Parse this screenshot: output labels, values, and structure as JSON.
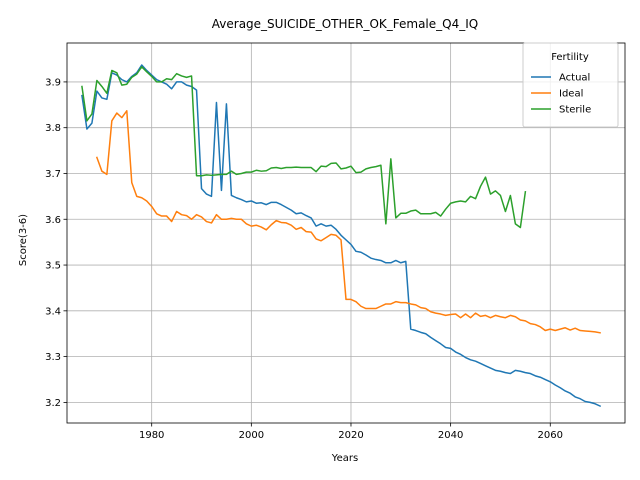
{
  "chart_data": {
    "type": "line",
    "title": "Average_SUICIDE_OTHER_OK_Female_Q4_IQ",
    "xlabel": "Years",
    "ylabel": "Score(3-6)",
    "xlim": [
      1963,
      2075
    ],
    "ylim": [
      3.155,
      3.985
    ],
    "xticks": [
      1980,
      2000,
      2020,
      2040,
      2060
    ],
    "yticks": [
      3.2,
      3.3,
      3.4,
      3.5,
      3.6,
      3.7,
      3.8,
      3.9
    ],
    "grid": true,
    "legend": {
      "title": "Fertility",
      "placement": "top-right"
    },
    "series": [
      {
        "name": "Actual",
        "color": "#1f77b4",
        "points": [
          [
            1966,
            3.87
          ],
          [
            1967,
            3.797
          ],
          [
            1968,
            3.81
          ],
          [
            1969,
            3.88
          ],
          [
            1970,
            3.865
          ],
          [
            1971,
            3.862
          ],
          [
            1972,
            3.92
          ],
          [
            1973,
            3.915
          ],
          [
            1974,
            3.905
          ],
          [
            1975,
            3.9
          ],
          [
            1976,
            3.912
          ],
          [
            1977,
            3.92
          ],
          [
            1978,
            3.937
          ],
          [
            1979,
            3.925
          ],
          [
            1980,
            3.915
          ],
          [
            1981,
            3.905
          ],
          [
            1982,
            3.9
          ],
          [
            1983,
            3.895
          ],
          [
            1984,
            3.885
          ],
          [
            1985,
            3.9
          ],
          [
            1986,
            3.9
          ],
          [
            1987,
            3.893
          ],
          [
            1988,
            3.89
          ],
          [
            1989,
            3.882
          ],
          [
            1990,
            3.667
          ],
          [
            1991,
            3.655
          ],
          [
            1992,
            3.65
          ],
          [
            1993,
            3.855
          ],
          [
            1994,
            3.663
          ],
          [
            1995,
            3.852
          ],
          [
            1996,
            3.652
          ],
          [
            1997,
            3.647
          ],
          [
            1998,
            3.643
          ],
          [
            1999,
            3.638
          ],
          [
            2000,
            3.64
          ],
          [
            2001,
            3.635
          ],
          [
            2002,
            3.636
          ],
          [
            2003,
            3.632
          ],
          [
            2004,
            3.637
          ],
          [
            2005,
            3.637
          ],
          [
            2006,
            3.632
          ],
          [
            2007,
            3.626
          ],
          [
            2008,
            3.62
          ],
          [
            2009,
            3.612
          ],
          [
            2010,
            3.614
          ],
          [
            2011,
            3.608
          ],
          [
            2012,
            3.603
          ],
          [
            2013,
            3.585
          ],
          [
            2014,
            3.59
          ],
          [
            2015,
            3.585
          ],
          [
            2016,
            3.587
          ],
          [
            2017,
            3.578
          ],
          [
            2018,
            3.565
          ],
          [
            2019,
            3.555
          ],
          [
            2020,
            3.545
          ],
          [
            2021,
            3.53
          ],
          [
            2022,
            3.528
          ],
          [
            2023,
            3.522
          ],
          [
            2024,
            3.515
          ],
          [
            2025,
            3.512
          ],
          [
            2026,
            3.51
          ],
          [
            2027,
            3.505
          ],
          [
            2028,
            3.505
          ],
          [
            2029,
            3.51
          ],
          [
            2030,
            3.505
          ],
          [
            2031,
            3.508
          ],
          [
            2032,
            3.36
          ],
          [
            2033,
            3.357
          ],
          [
            2034,
            3.353
          ],
          [
            2035,
            3.35
          ],
          [
            2036,
            3.342
          ],
          [
            2037,
            3.335
          ],
          [
            2038,
            3.328
          ],
          [
            2039,
            3.32
          ],
          [
            2040,
            3.318
          ],
          [
            2041,
            3.31
          ],
          [
            2042,
            3.305
          ],
          [
            2043,
            3.298
          ],
          [
            2044,
            3.293
          ],
          [
            2045,
            3.29
          ],
          [
            2046,
            3.285
          ],
          [
            2047,
            3.28
          ],
          [
            2048,
            3.275
          ],
          [
            2049,
            3.27
          ],
          [
            2050,
            3.268
          ],
          [
            2051,
            3.265
          ],
          [
            2052,
            3.263
          ],
          [
            2053,
            3.27
          ],
          [
            2054,
            3.268
          ],
          [
            2055,
            3.265
          ],
          [
            2056,
            3.263
          ],
          [
            2057,
            3.258
          ],
          [
            2058,
            3.255
          ],
          [
            2059,
            3.25
          ],
          [
            2060,
            3.245
          ],
          [
            2061,
            3.238
          ],
          [
            2062,
            3.232
          ],
          [
            2063,
            3.225
          ],
          [
            2064,
            3.22
          ],
          [
            2065,
            3.212
          ],
          [
            2066,
            3.208
          ],
          [
            2067,
            3.202
          ],
          [
            2068,
            3.2
          ],
          [
            2069,
            3.197
          ],
          [
            2070,
            3.192
          ]
        ]
      },
      {
        "name": "Ideal",
        "color": "#ff7f0e",
        "points": [
          [
            1969,
            3.735
          ],
          [
            1970,
            3.705
          ],
          [
            1971,
            3.698
          ],
          [
            1972,
            3.815
          ],
          [
            1973,
            3.832
          ],
          [
            1974,
            3.822
          ],
          [
            1975,
            3.837
          ],
          [
            1976,
            3.68
          ],
          [
            1977,
            3.65
          ],
          [
            1978,
            3.647
          ],
          [
            1979,
            3.64
          ],
          [
            1980,
            3.628
          ],
          [
            1981,
            3.612
          ],
          [
            1982,
            3.607
          ],
          [
            1983,
            3.607
          ],
          [
            1984,
            3.595
          ],
          [
            1985,
            3.617
          ],
          [
            1986,
            3.61
          ],
          [
            1987,
            3.608
          ],
          [
            1988,
            3.6
          ],
          [
            1989,
            3.61
          ],
          [
            1990,
            3.605
          ],
          [
            1991,
            3.595
          ],
          [
            1992,
            3.592
          ],
          [
            1993,
            3.61
          ],
          [
            1994,
            3.6
          ],
          [
            1995,
            3.6
          ],
          [
            1996,
            3.602
          ],
          [
            1997,
            3.6
          ],
          [
            1998,
            3.6
          ],
          [
            1999,
            3.59
          ],
          [
            2000,
            3.585
          ],
          [
            2001,
            3.587
          ],
          [
            2002,
            3.583
          ],
          [
            2003,
            3.577
          ],
          [
            2004,
            3.588
          ],
          [
            2005,
            3.597
          ],
          [
            2006,
            3.593
          ],
          [
            2007,
            3.592
          ],
          [
            2008,
            3.587
          ],
          [
            2009,
            3.578
          ],
          [
            2010,
            3.582
          ],
          [
            2011,
            3.573
          ],
          [
            2012,
            3.572
          ],
          [
            2013,
            3.557
          ],
          [
            2014,
            3.553
          ],
          [
            2015,
            3.56
          ],
          [
            2016,
            3.567
          ],
          [
            2017,
            3.565
          ],
          [
            2018,
            3.555
          ],
          [
            2019,
            3.425
          ],
          [
            2020,
            3.425
          ],
          [
            2021,
            3.42
          ],
          [
            2022,
            3.41
          ],
          [
            2023,
            3.405
          ],
          [
            2024,
            3.405
          ],
          [
            2025,
            3.405
          ],
          [
            2026,
            3.41
          ],
          [
            2027,
            3.415
          ],
          [
            2028,
            3.415
          ],
          [
            2029,
            3.42
          ],
          [
            2030,
            3.418
          ],
          [
            2031,
            3.418
          ],
          [
            2032,
            3.415
          ],
          [
            2033,
            3.413
          ],
          [
            2034,
            3.407
          ],
          [
            2035,
            3.405
          ],
          [
            2036,
            3.398
          ],
          [
            2037,
            3.395
          ],
          [
            2038,
            3.393
          ],
          [
            2039,
            3.39
          ],
          [
            2040,
            3.392
          ],
          [
            2041,
            3.393
          ],
          [
            2042,
            3.385
          ],
          [
            2043,
            3.393
          ],
          [
            2044,
            3.385
          ],
          [
            2045,
            3.395
          ],
          [
            2046,
            3.388
          ],
          [
            2047,
            3.39
          ],
          [
            2048,
            3.385
          ],
          [
            2049,
            3.39
          ],
          [
            2050,
            3.387
          ],
          [
            2051,
            3.385
          ],
          [
            2052,
            3.39
          ],
          [
            2053,
            3.387
          ],
          [
            2054,
            3.38
          ],
          [
            2055,
            3.378
          ],
          [
            2056,
            3.372
          ],
          [
            2057,
            3.37
          ],
          [
            2058,
            3.365
          ],
          [
            2059,
            3.357
          ],
          [
            2060,
            3.36
          ],
          [
            2061,
            3.357
          ],
          [
            2062,
            3.36
          ],
          [
            2063,
            3.363
          ],
          [
            2064,
            3.358
          ],
          [
            2065,
            3.362
          ],
          [
            2066,
            3.357
          ],
          [
            2067,
            3.356
          ],
          [
            2068,
            3.355
          ],
          [
            2069,
            3.354
          ],
          [
            2070,
            3.352
          ]
        ]
      },
      {
        "name": "Sterile",
        "color": "#2ca02c",
        "points": [
          [
            1966,
            3.89
          ],
          [
            1967,
            3.815
          ],
          [
            1968,
            3.83
          ],
          [
            1969,
            3.903
          ],
          [
            1970,
            3.89
          ],
          [
            1971,
            3.875
          ],
          [
            1972,
            3.925
          ],
          [
            1973,
            3.92
          ],
          [
            1974,
            3.893
          ],
          [
            1975,
            3.895
          ],
          [
            1976,
            3.91
          ],
          [
            1977,
            3.917
          ],
          [
            1978,
            3.933
          ],
          [
            1979,
            3.922
          ],
          [
            1980,
            3.912
          ],
          [
            1981,
            3.9
          ],
          [
            1982,
            3.9
          ],
          [
            1983,
            3.907
          ],
          [
            1984,
            3.905
          ],
          [
            1985,
            3.918
          ],
          [
            1986,
            3.913
          ],
          [
            1987,
            3.91
          ],
          [
            1988,
            3.913
          ],
          [
            1989,
            3.695
          ],
          [
            1990,
            3.695
          ],
          [
            1991,
            3.697
          ],
          [
            1992,
            3.696
          ],
          [
            1993,
            3.697
          ],
          [
            1994,
            3.698
          ],
          [
            1995,
            3.698
          ],
          [
            1996,
            3.705
          ],
          [
            1997,
            3.698
          ],
          [
            1998,
            3.7
          ],
          [
            1999,
            3.703
          ],
          [
            2000,
            3.703
          ],
          [
            2001,
            3.707
          ],
          [
            2002,
            3.705
          ],
          [
            2003,
            3.706
          ],
          [
            2004,
            3.712
          ],
          [
            2005,
            3.713
          ],
          [
            2006,
            3.711
          ],
          [
            2007,
            3.713
          ],
          [
            2008,
            3.713
          ],
          [
            2009,
            3.714
          ],
          [
            2010,
            3.713
          ],
          [
            2011,
            3.713
          ],
          [
            2012,
            3.713
          ],
          [
            2013,
            3.704
          ],
          [
            2014,
            3.716
          ],
          [
            2015,
            3.715
          ],
          [
            2016,
            3.722
          ],
          [
            2017,
            3.723
          ],
          [
            2018,
            3.71
          ],
          [
            2019,
            3.712
          ],
          [
            2020,
            3.716
          ],
          [
            2021,
            3.702
          ],
          [
            2022,
            3.703
          ],
          [
            2023,
            3.71
          ],
          [
            2024,
            3.713
          ],
          [
            2025,
            3.715
          ],
          [
            2026,
            3.718
          ],
          [
            2027,
            3.59
          ],
          [
            2028,
            3.732
          ],
          [
            2029,
            3.603
          ],
          [
            2030,
            3.613
          ],
          [
            2031,
            3.613
          ],
          [
            2032,
            3.618
          ],
          [
            2033,
            3.62
          ],
          [
            2034,
            3.612
          ],
          [
            2035,
            3.612
          ],
          [
            2036,
            3.612
          ],
          [
            2037,
            3.615
          ],
          [
            2038,
            3.607
          ],
          [
            2039,
            3.622
          ],
          [
            2040,
            3.635
          ],
          [
            2041,
            3.638
          ],
          [
            2042,
            3.64
          ],
          [
            2043,
            3.638
          ],
          [
            2044,
            3.65
          ],
          [
            2045,
            3.645
          ],
          [
            2046,
            3.672
          ],
          [
            2047,
            3.692
          ],
          [
            2048,
            3.655
          ],
          [
            2049,
            3.662
          ],
          [
            2050,
            3.652
          ],
          [
            2051,
            3.617
          ],
          [
            2052,
            3.652
          ],
          [
            2053,
            3.59
          ],
          [
            2054,
            3.582
          ],
          [
            2055,
            3.66
          ]
        ]
      }
    ]
  }
}
